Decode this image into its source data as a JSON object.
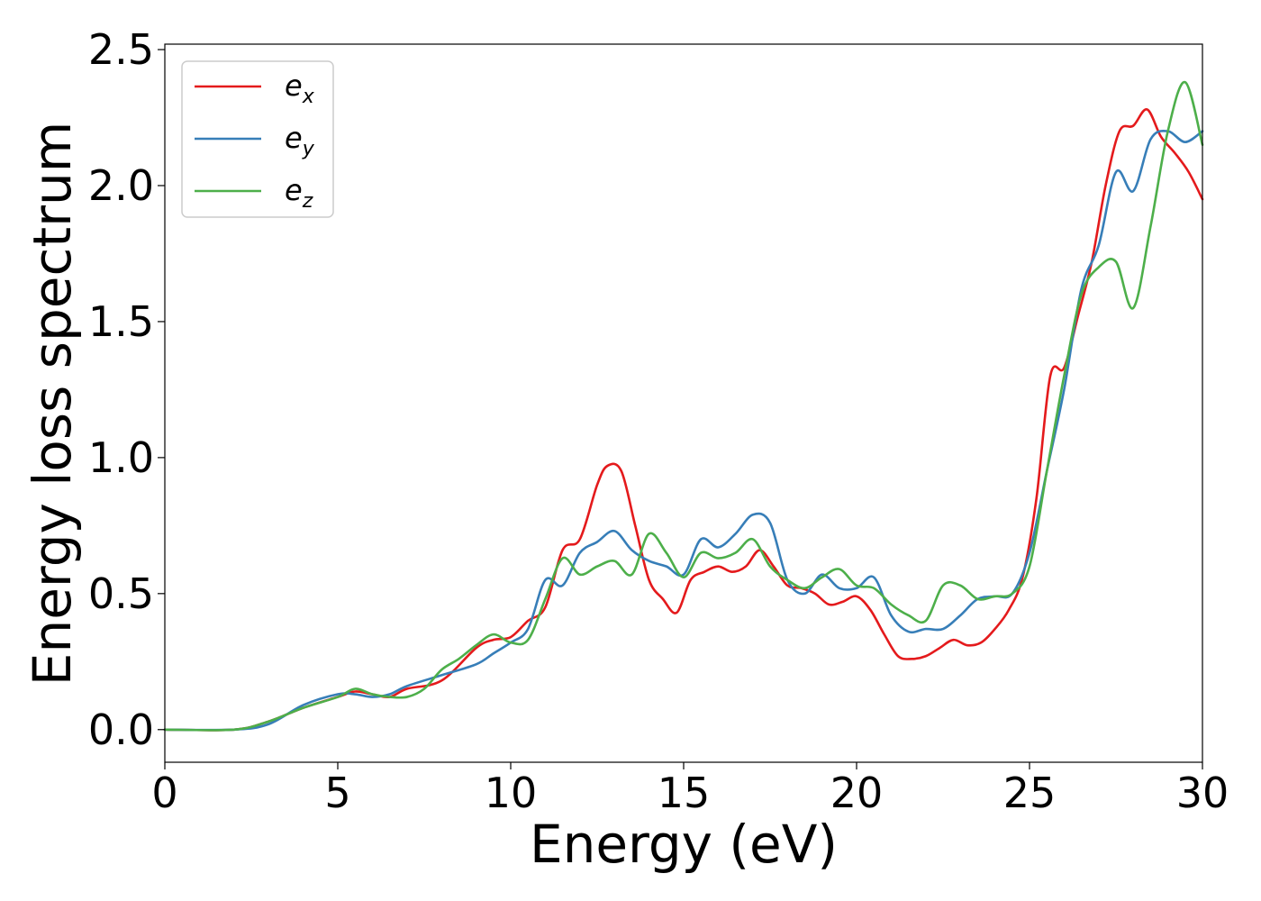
{
  "chart_data": {
    "type": "line",
    "title": "",
    "xlabel": "Energy (eV)",
    "ylabel": "Energy loss spectrum",
    "xlim": [
      0,
      30
    ],
    "ylim": [
      -0.12,
      2.52
    ],
    "xticks": [
      0,
      5,
      10,
      15,
      20,
      25,
      30
    ],
    "xtick_labels": [
      "0",
      "5",
      "10",
      "15",
      "20",
      "25",
      "30"
    ],
    "yticks": [
      0.0,
      0.5,
      1.0,
      1.5,
      2.0,
      2.5
    ],
    "ytick_labels": [
      "0.0",
      "0.5",
      "1.0",
      "1.5",
      "2.0",
      "2.5"
    ],
    "grid": false,
    "legend_position": "top-left",
    "series": [
      {
        "name": "e",
        "name_sub": "x",
        "color": "#e41a1c",
        "x": [
          0,
          2,
          3,
          4,
          5,
          5.5,
          6,
          6.5,
          7,
          8,
          9,
          9.5,
          10,
          10.5,
          11,
          11.5,
          12,
          12.5,
          12.8,
          13.2,
          13.6,
          14,
          14.4,
          14.8,
          15.2,
          15.6,
          16,
          16.4,
          16.8,
          17.2,
          17.6,
          18,
          18.4,
          18.8,
          19.2,
          19.6,
          20,
          20.4,
          20.8,
          21.2,
          21.6,
          22,
          22.4,
          22.8,
          23.2,
          23.6,
          24,
          24.4,
          24.8,
          25.2,
          25.6,
          26,
          26.4,
          26.8,
          27.2,
          27.6,
          28,
          28.4,
          28.8,
          29.2,
          29.6,
          30
        ],
        "values": [
          0.0,
          0.0,
          0.03,
          0.08,
          0.12,
          0.14,
          0.13,
          0.12,
          0.15,
          0.18,
          0.3,
          0.33,
          0.34,
          0.4,
          0.45,
          0.66,
          0.7,
          0.9,
          0.97,
          0.95,
          0.75,
          0.55,
          0.48,
          0.43,
          0.55,
          0.58,
          0.6,
          0.58,
          0.6,
          0.66,
          0.6,
          0.53,
          0.52,
          0.5,
          0.46,
          0.47,
          0.49,
          0.44,
          0.35,
          0.27,
          0.26,
          0.27,
          0.3,
          0.33,
          0.31,
          0.32,
          0.37,
          0.44,
          0.56,
          0.85,
          1.3,
          1.33,
          1.52,
          1.72,
          2.0,
          2.2,
          2.22,
          2.28,
          2.18,
          2.12,
          2.05,
          1.95
        ]
      },
      {
        "name": "e",
        "name_sub": "y",
        "color": "#377eb8",
        "x": [
          0,
          2,
          3,
          4,
          5,
          5.5,
          6,
          6.5,
          7,
          8,
          9,
          9.5,
          10,
          10.5,
          11,
          11.5,
          12,
          12.5,
          13,
          13.5,
          14,
          14.5,
          15,
          15.5,
          16,
          16.5,
          17,
          17.5,
          18,
          18.5,
          19,
          19.5,
          20,
          20.5,
          21,
          21.5,
          22,
          22.5,
          23,
          23.5,
          24,
          24.5,
          25,
          25.5,
          26,
          26.5,
          27,
          27.5,
          28,
          28.5,
          29,
          29.5,
          30
        ],
        "values": [
          0.0,
          0.0,
          0.02,
          0.09,
          0.13,
          0.13,
          0.12,
          0.13,
          0.16,
          0.2,
          0.24,
          0.28,
          0.32,
          0.37,
          0.55,
          0.53,
          0.65,
          0.69,
          0.73,
          0.66,
          0.62,
          0.6,
          0.57,
          0.7,
          0.67,
          0.72,
          0.79,
          0.76,
          0.55,
          0.5,
          0.57,
          0.52,
          0.52,
          0.56,
          0.42,
          0.36,
          0.37,
          0.37,
          0.42,
          0.48,
          0.49,
          0.5,
          0.65,
          0.95,
          1.25,
          1.62,
          1.78,
          2.05,
          1.98,
          2.17,
          2.2,
          2.16,
          2.2
        ]
      },
      {
        "name": "e",
        "name_sub": "z",
        "color": "#4daf4a",
        "x": [
          0,
          2,
          3,
          4,
          5,
          5.5,
          6,
          6.5,
          7,
          7.5,
          8,
          8.5,
          9,
          9.5,
          10,
          10.5,
          11,
          11.5,
          12,
          12.5,
          13,
          13.5,
          14,
          14.5,
          15,
          15.5,
          16,
          16.5,
          17,
          17.5,
          18,
          18.5,
          19,
          19.5,
          20,
          20.5,
          21,
          21.5,
          22,
          22.5,
          23,
          23.5,
          24,
          24.5,
          25,
          25.5,
          26,
          26.5,
          27,
          27.5,
          28,
          28.5,
          29,
          29.5,
          30
        ],
        "values": [
          0.0,
          0.0,
          0.03,
          0.08,
          0.12,
          0.15,
          0.13,
          0.12,
          0.12,
          0.15,
          0.22,
          0.26,
          0.31,
          0.35,
          0.32,
          0.33,
          0.48,
          0.63,
          0.57,
          0.6,
          0.62,
          0.57,
          0.72,
          0.65,
          0.56,
          0.65,
          0.63,
          0.65,
          0.7,
          0.6,
          0.55,
          0.52,
          0.56,
          0.59,
          0.53,
          0.52,
          0.46,
          0.42,
          0.4,
          0.53,
          0.53,
          0.48,
          0.49,
          0.5,
          0.6,
          0.95,
          1.3,
          1.6,
          1.7,
          1.72,
          1.55,
          1.85,
          2.2,
          2.38,
          2.15
        ]
      }
    ]
  }
}
